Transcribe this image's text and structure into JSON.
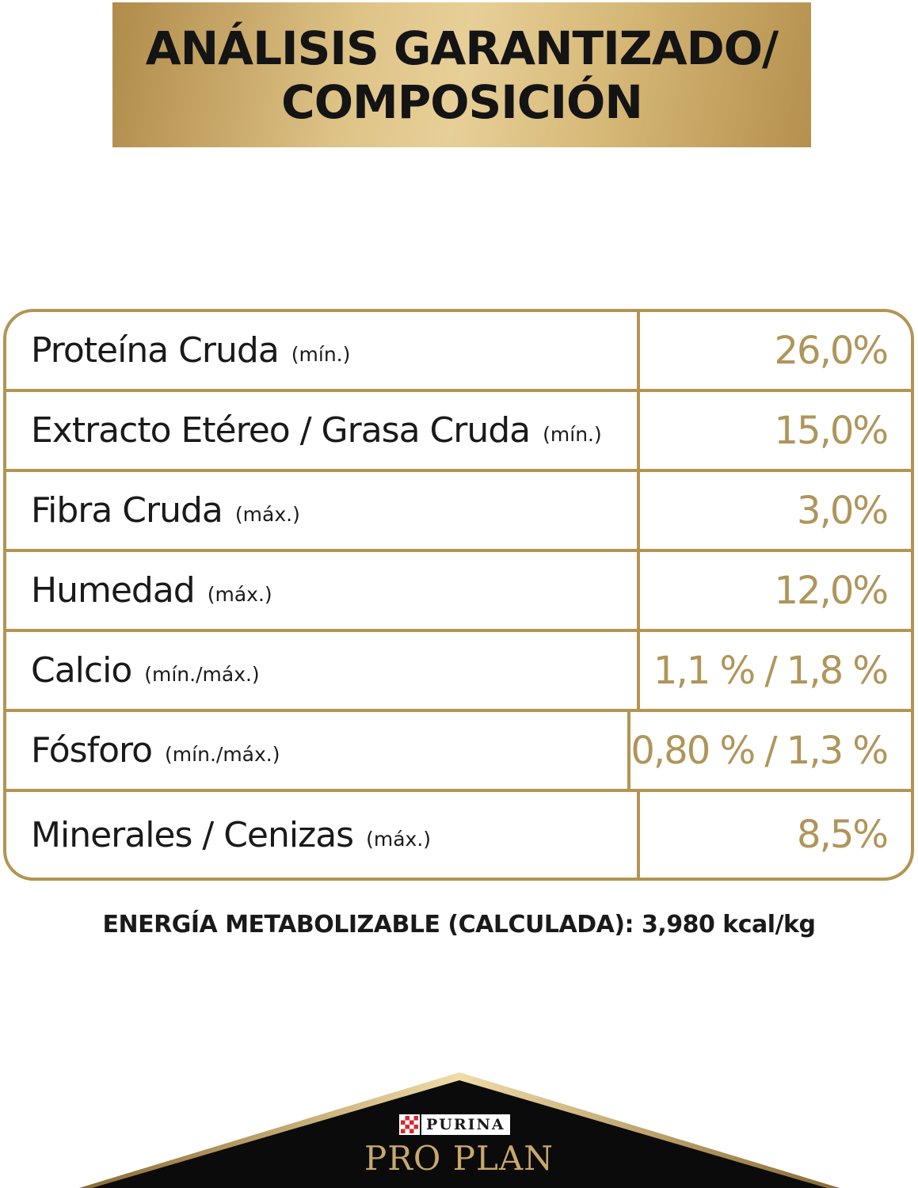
{
  "title": {
    "line1": "ANÁLISIS GARANTIZADO/",
    "line2": "COMPOSICIÓN"
  },
  "rows": [
    {
      "label": "Proteína Cruda",
      "qualifier": "(mín.)",
      "value": "26,0%"
    },
    {
      "label": "Extracto Etéreo / Grasa Cruda",
      "qualifier": "(mín.)",
      "value": "15,0%"
    },
    {
      "label": "Fibra Cruda",
      "qualifier": "(máx.)",
      "value": "3,0%"
    },
    {
      "label": "Humedad",
      "qualifier": "(máx.)",
      "value": "12,0%"
    },
    {
      "label": "Calcio",
      "qualifier": "(mín./máx.)",
      "value": "1,1 %  / 1,8 %"
    },
    {
      "label": "Fósforo",
      "qualifier": "(mín./máx.)",
      "value": "0,80 % / 1,3 %"
    },
    {
      "label": "Minerales / Cenizas",
      "qualifier": "(máx.)",
      "value": "8,5%"
    }
  ],
  "energy": "ENERGÍA METABOLIZABLE (CALCULADA): 3,980 kcal/kg",
  "brand": {
    "purina": "PURINA",
    "proplan": "PRO PLAN"
  },
  "colors": {
    "gold": "#b39552",
    "value_text": "#b0955a",
    "banner_light": "#e7cf98",
    "logo_black": "#0b0b0b",
    "purina_red": "#d9282f"
  }
}
